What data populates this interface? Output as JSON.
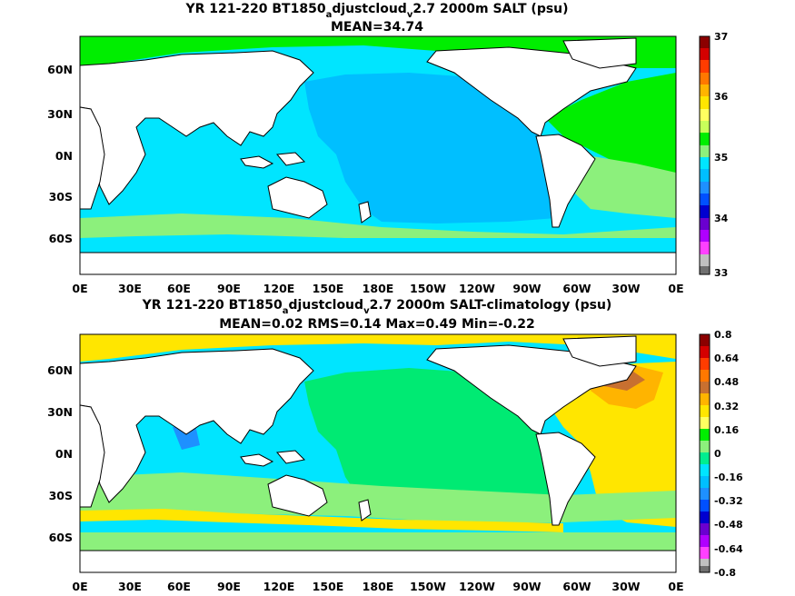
{
  "panels": [
    {
      "title_line1_prefix": "YR 121-220 BT1850",
      "title_sub1": "a",
      "title_mid": "djustcloud",
      "title_sub2": "v",
      "title_line1_suffix": "2.7 2000m SALT (psu)",
      "title_line2": "MEAN=34.74",
      "colorbar_labels": [
        "37",
        "36",
        "35",
        "34",
        "33"
      ]
    },
    {
      "title_line1_prefix": "YR 121-220 BT1850",
      "title_sub1": "a",
      "title_mid": "djustcloud",
      "title_sub2": "v",
      "title_line1_suffix": "2.7 2000m SALT-climatology (psu)",
      "title_line2": "MEAN=0.02   RMS=0.14   Max=0.49   Min=-0.22",
      "colorbar_labels": [
        "0.8",
        "0.64",
        "0.48",
        "0.32",
        "0.16",
        "0",
        "-0.16",
        "-0.32",
        "-0.48",
        "-0.64",
        "-0.8"
      ]
    }
  ],
  "lat_labels": [
    "60N",
    "30N",
    "0N",
    "30S",
    "60S"
  ],
  "lon_labels": [
    "0E",
    "30E",
    "60E",
    "90E",
    "120E",
    "150E",
    "180E",
    "150W",
    "120W",
    "90W",
    "60W",
    "30W",
    "0E"
  ],
  "colors": {
    "ocean_cyan": "#00e5ff",
    "ocean_blue": "#00bfff",
    "ocean_green": "#00ee00",
    "light_green": "#8cf07c",
    "yellow": "#ffe600",
    "orange": "#ffb400",
    "brown": "#c87030",
    "land": "#ffffff"
  }
}
